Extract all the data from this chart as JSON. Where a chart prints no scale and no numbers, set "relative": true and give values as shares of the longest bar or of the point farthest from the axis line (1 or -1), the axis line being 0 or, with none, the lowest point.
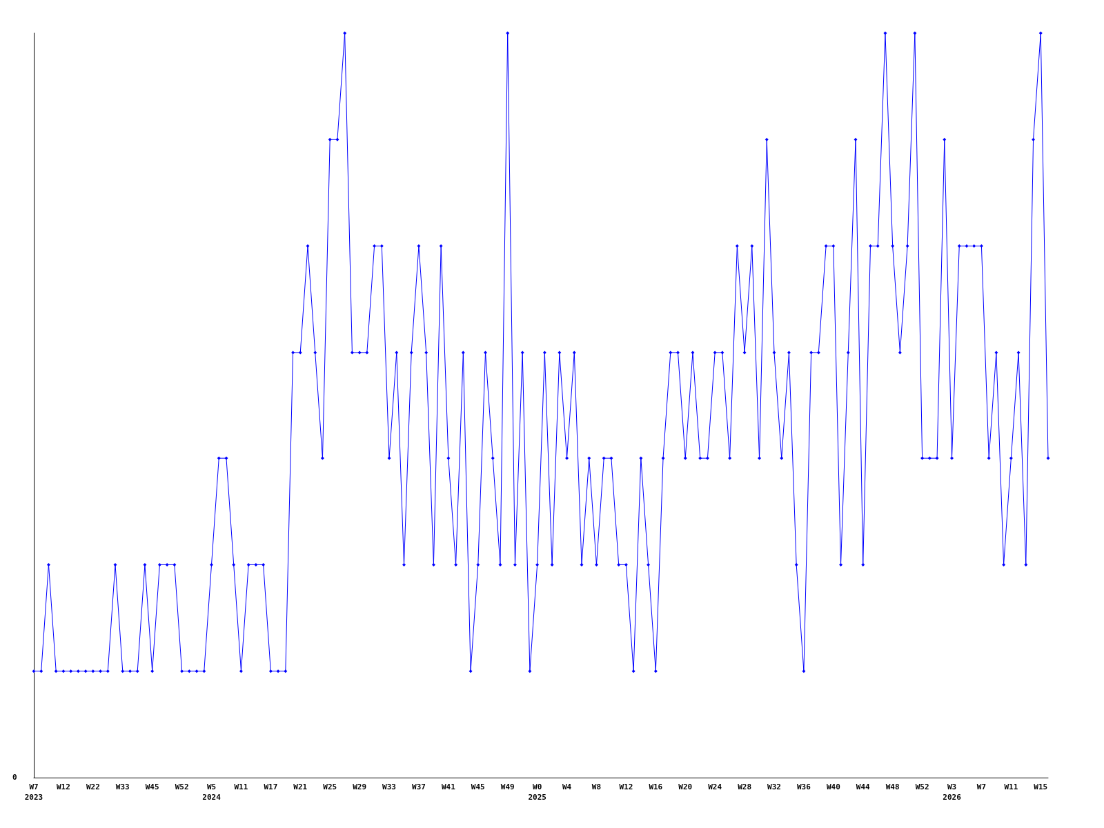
{
  "chart_data": {
    "type": "line",
    "relative": true,
    "grid": false,
    "marker": "diamond",
    "line_style": "solid",
    "annotations": [
      "0"
    ],
    "categories": [
      "W7\n2023",
      null,
      null,
      null,
      "W12",
      null,
      null,
      null,
      "W22",
      null,
      null,
      null,
      "W33",
      null,
      null,
      null,
      "W45",
      null,
      null,
      null,
      "W52",
      null,
      null,
      null,
      "W5\n2024",
      null,
      null,
      null,
      "W11",
      null,
      null,
      null,
      "W17",
      null,
      null,
      null,
      "W21",
      null,
      null,
      null,
      "W25",
      null,
      null,
      null,
      "W29",
      null,
      null,
      null,
      "W33",
      null,
      null,
      null,
      "W37",
      null,
      null,
      null,
      "W41",
      null,
      null,
      null,
      "W45",
      null,
      null,
      null,
      "W49",
      null,
      null,
      null,
      "W0\n2025",
      null,
      null,
      null,
      "W4",
      null,
      null,
      null,
      "W8",
      null,
      null,
      null,
      "W12",
      null,
      null,
      null,
      "W16",
      null,
      null,
      null,
      "W20",
      null,
      null,
      null,
      "W24",
      null,
      null,
      null,
      "W28",
      null,
      null,
      null,
      "W32",
      null,
      null,
      null,
      "W36",
      null,
      null,
      null,
      "W40",
      null,
      null,
      null,
      "W44",
      null,
      null,
      null,
      "W48",
      null,
      null,
      null,
      "W52",
      null,
      null,
      null,
      "W3\n2026",
      null,
      null,
      null,
      "W7",
      null,
      null,
      null,
      "W11",
      null,
      null,
      null,
      "W15",
      null
    ],
    "series": [
      {
        "color": "#0000ff",
        "values": [
          0.143,
          0.143,
          0.286,
          0.143,
          0.143,
          0.143,
          0.143,
          0.143,
          0.143,
          0.143,
          0.143,
          0.286,
          0.143,
          0.143,
          0.143,
          0.286,
          0.143,
          0.286,
          0.286,
          0.286,
          0.143,
          0.143,
          0.143,
          0.143,
          0.286,
          0.429,
          0.429,
          0.286,
          0.143,
          0.286,
          0.286,
          0.286,
          0.143,
          0.143,
          0.143,
          0.571,
          0.571,
          0.714,
          0.571,
          0.429,
          0.857,
          0.857,
          1,
          0.571,
          0.571,
          0.571,
          0.714,
          0.714,
          0.429,
          0.571,
          0.286,
          0.571,
          0.714,
          0.571,
          0.286,
          0.714,
          0.429,
          0.286,
          0.571,
          0.143,
          0.286,
          0.571,
          0.429,
          0.286,
          1,
          0.286,
          0.571,
          0.143,
          0.286,
          0.571,
          0.286,
          0.571,
          0.429,
          0.571,
          0.286,
          0.429,
          0.286,
          0.429,
          0.429,
          0.286,
          0.286,
          0.143,
          0.429,
          0.286,
          0.143,
          0.429,
          0.571,
          0.571,
          0.429,
          0.571,
          0.429,
          0.429,
          0.571,
          0.571,
          0.429,
          0.714,
          0.571,
          0.714,
          0.429,
          0.857,
          0.571,
          0.429,
          0.571,
          0.286,
          0.143,
          0.571,
          0.571,
          0.714,
          0.714,
          0.286,
          0.571,
          0.857,
          0.286,
          0.714,
          0.714,
          1,
          0.714,
          0.571,
          0.714,
          1,
          0.429,
          0.429,
          0.429,
          0.857,
          0.429,
          0.714,
          0.714,
          0.714,
          0.714,
          0.429,
          0.571,
          0.286,
          0.429,
          0.571,
          0.286,
          0.857,
          1,
          0.429
        ]
      }
    ]
  }
}
